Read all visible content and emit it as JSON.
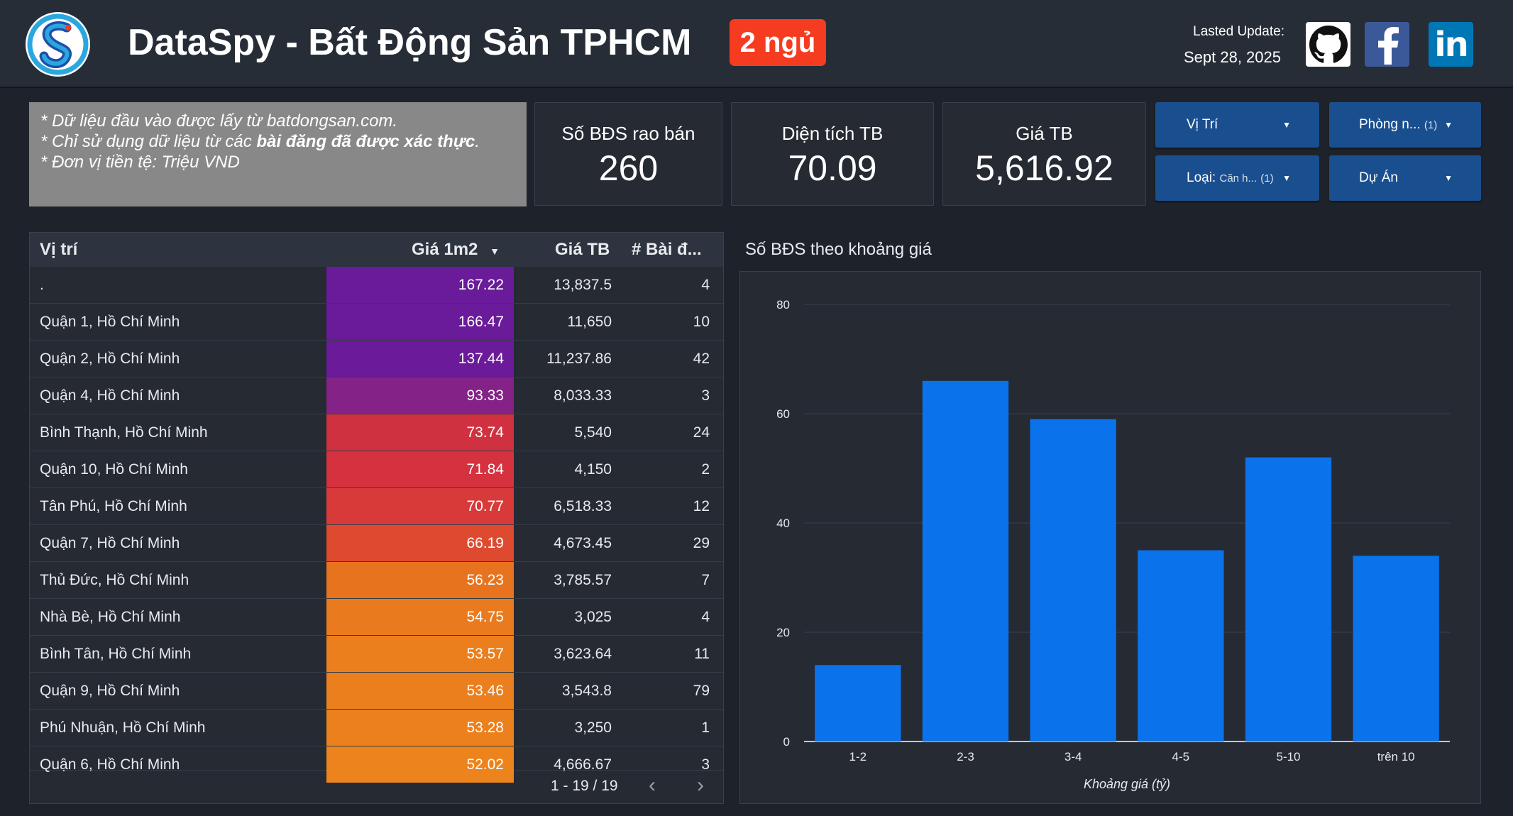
{
  "header": {
    "title": "DataSpy - Bất Động Sản TPHCM",
    "badge": "2 ngủ",
    "update_label": "Lasted Update:",
    "update_date": "Sept 28, 2025"
  },
  "note": {
    "line1": "* Dữ liệu đầu vào được lấy từ batdongsan.com.",
    "line2_prefix": "* Chỉ sử dụng dữ liệu từ các ",
    "line2_bold": "bài đăng đã được xác thực",
    "line2_suffix": ".",
    "line3": "* Đơn vị tiền tệ: Triệu VND"
  },
  "kpis": [
    {
      "label": "Số BĐS rao bán",
      "value": "260"
    },
    {
      "label": "Diện tích TB",
      "value": "70.09"
    },
    {
      "label": "Giá TB",
      "value": "5,616.92"
    }
  ],
  "filters": {
    "vitri": {
      "label": "Vị Trí"
    },
    "phong": {
      "label": "Phòng n...",
      "count": "(1)"
    },
    "loai": {
      "label": "Loại:",
      "value": "Căn h...",
      "count": "(1)"
    },
    "duan": {
      "label": "Dự Án"
    }
  },
  "table": {
    "headers": {
      "location": "Vị trí",
      "price_m2": "Giá 1m2",
      "avg_price": "Giá TB",
      "count": "# Bài đ..."
    },
    "rows": [
      {
        "location": ".",
        "price_m2": "167.22",
        "avg_price": "13,837.5",
        "count": "4",
        "color": "#6a1b9a"
      },
      {
        "location": "Quận 1, Hồ Chí Minh",
        "price_m2": "166.47",
        "avg_price": "11,650",
        "count": "10",
        "color": "#6a1b9a"
      },
      {
        "location": "Quận 2, Hồ Chí Minh",
        "price_m2": "137.44",
        "avg_price": "11,237.86",
        "count": "42",
        "color": "#6b1a9a"
      },
      {
        "location": "Quận 4, Hồ Chí Minh",
        "price_m2": "93.33",
        "avg_price": "8,033.33",
        "count": "3",
        "color": "#842287"
      },
      {
        "location": "Bình Thạnh, Hồ Chí Minh",
        "price_m2": "73.74",
        "avg_price": "5,540",
        "count": "24",
        "color": "#cf3140"
      },
      {
        "location": "Quận 10, Hồ Chí Minh",
        "price_m2": "71.84",
        "avg_price": "4,150",
        "count": "2",
        "color": "#d5313e"
      },
      {
        "location": "Tân Phú, Hồ Chí Minh",
        "price_m2": "70.77",
        "avg_price": "6,518.33",
        "count": "12",
        "color": "#d83a3a"
      },
      {
        "location": "Quận 7, Hồ Chí Minh",
        "price_m2": "66.19",
        "avg_price": "4,673.45",
        "count": "29",
        "color": "#de4a30"
      },
      {
        "location": "Thủ Đức, Hồ Chí Minh",
        "price_m2": "56.23",
        "avg_price": "3,785.57",
        "count": "7",
        "color": "#e8731f"
      },
      {
        "location": "Nhà Bè, Hồ Chí Minh",
        "price_m2": "54.75",
        "avg_price": "3,025",
        "count": "4",
        "color": "#ea7a1e"
      },
      {
        "location": "Bình Tân, Hồ Chí Minh",
        "price_m2": "53.57",
        "avg_price": "3,623.64",
        "count": "11",
        "color": "#eb7e1d"
      },
      {
        "location": "Quận 9, Hồ Chí Minh",
        "price_m2": "53.46",
        "avg_price": "3,543.8",
        "count": "79",
        "color": "#eb7f1d"
      },
      {
        "location": "Phú Nhuận, Hồ Chí Minh",
        "price_m2": "53.28",
        "avg_price": "3,250",
        "count": "1",
        "color": "#eb801d"
      },
      {
        "location": "Quận 6, Hồ Chí Minh",
        "price_m2": "52.02",
        "avg_price": "4,666.67",
        "count": "3",
        "color": "#ec831c"
      }
    ],
    "pagination": "1 - 19 / 19"
  },
  "chart_title": "Số BĐS theo khoảng giá",
  "chart_data": {
    "type": "bar",
    "categories": [
      "1-2",
      "2-3",
      "3-4",
      "4-5",
      "5-10",
      "trên 10"
    ],
    "values": [
      14,
      66,
      59,
      35,
      52,
      34
    ],
    "xlabel": "Khoảng giá (tỷ)",
    "ylabel": "",
    "ylim": [
      0,
      80
    ],
    "yticks": [
      "0",
      "20",
      "40",
      "60",
      "80"
    ],
    "bar_color": "#0a72eb"
  }
}
